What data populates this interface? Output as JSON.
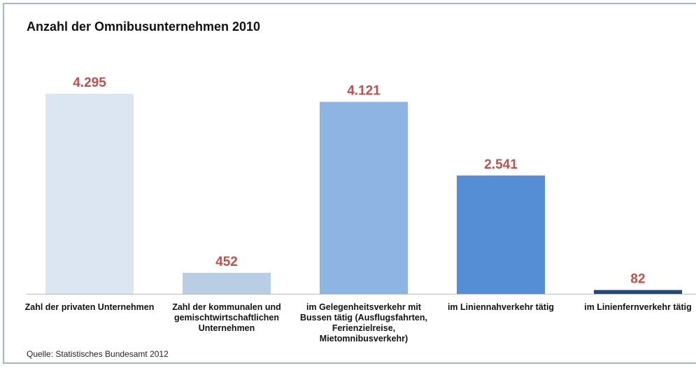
{
  "chart_data": {
    "type": "bar",
    "title": "Anzahl der Omnibusunternehmen 2010",
    "categories": [
      "Zahl der privaten Unternehmen",
      "Zahl der kommunalen und gemischtwirtschaftlichen Unternehmen",
      "im Gelegenheitsverkehr mit Bussen tätig (Ausflugsfahrten, Ferienzielreise, Mietomnibusverkehr)",
      "im Liniennahverkehr tätig",
      "im Linienfernverkehr tätig"
    ],
    "values": [
      4295,
      452,
      4121,
      2541,
      82
    ],
    "value_labels": [
      "4.295",
      "452",
      "4.121",
      "2.541",
      "82"
    ],
    "colors": [
      "#dce6f2",
      "#b9cde5",
      "#8eb4e3",
      "#558ed5",
      "#1f497d"
    ],
    "label_color": "#c0504d",
    "source": "Quelle: Statistisches Bundesamt 2012"
  }
}
